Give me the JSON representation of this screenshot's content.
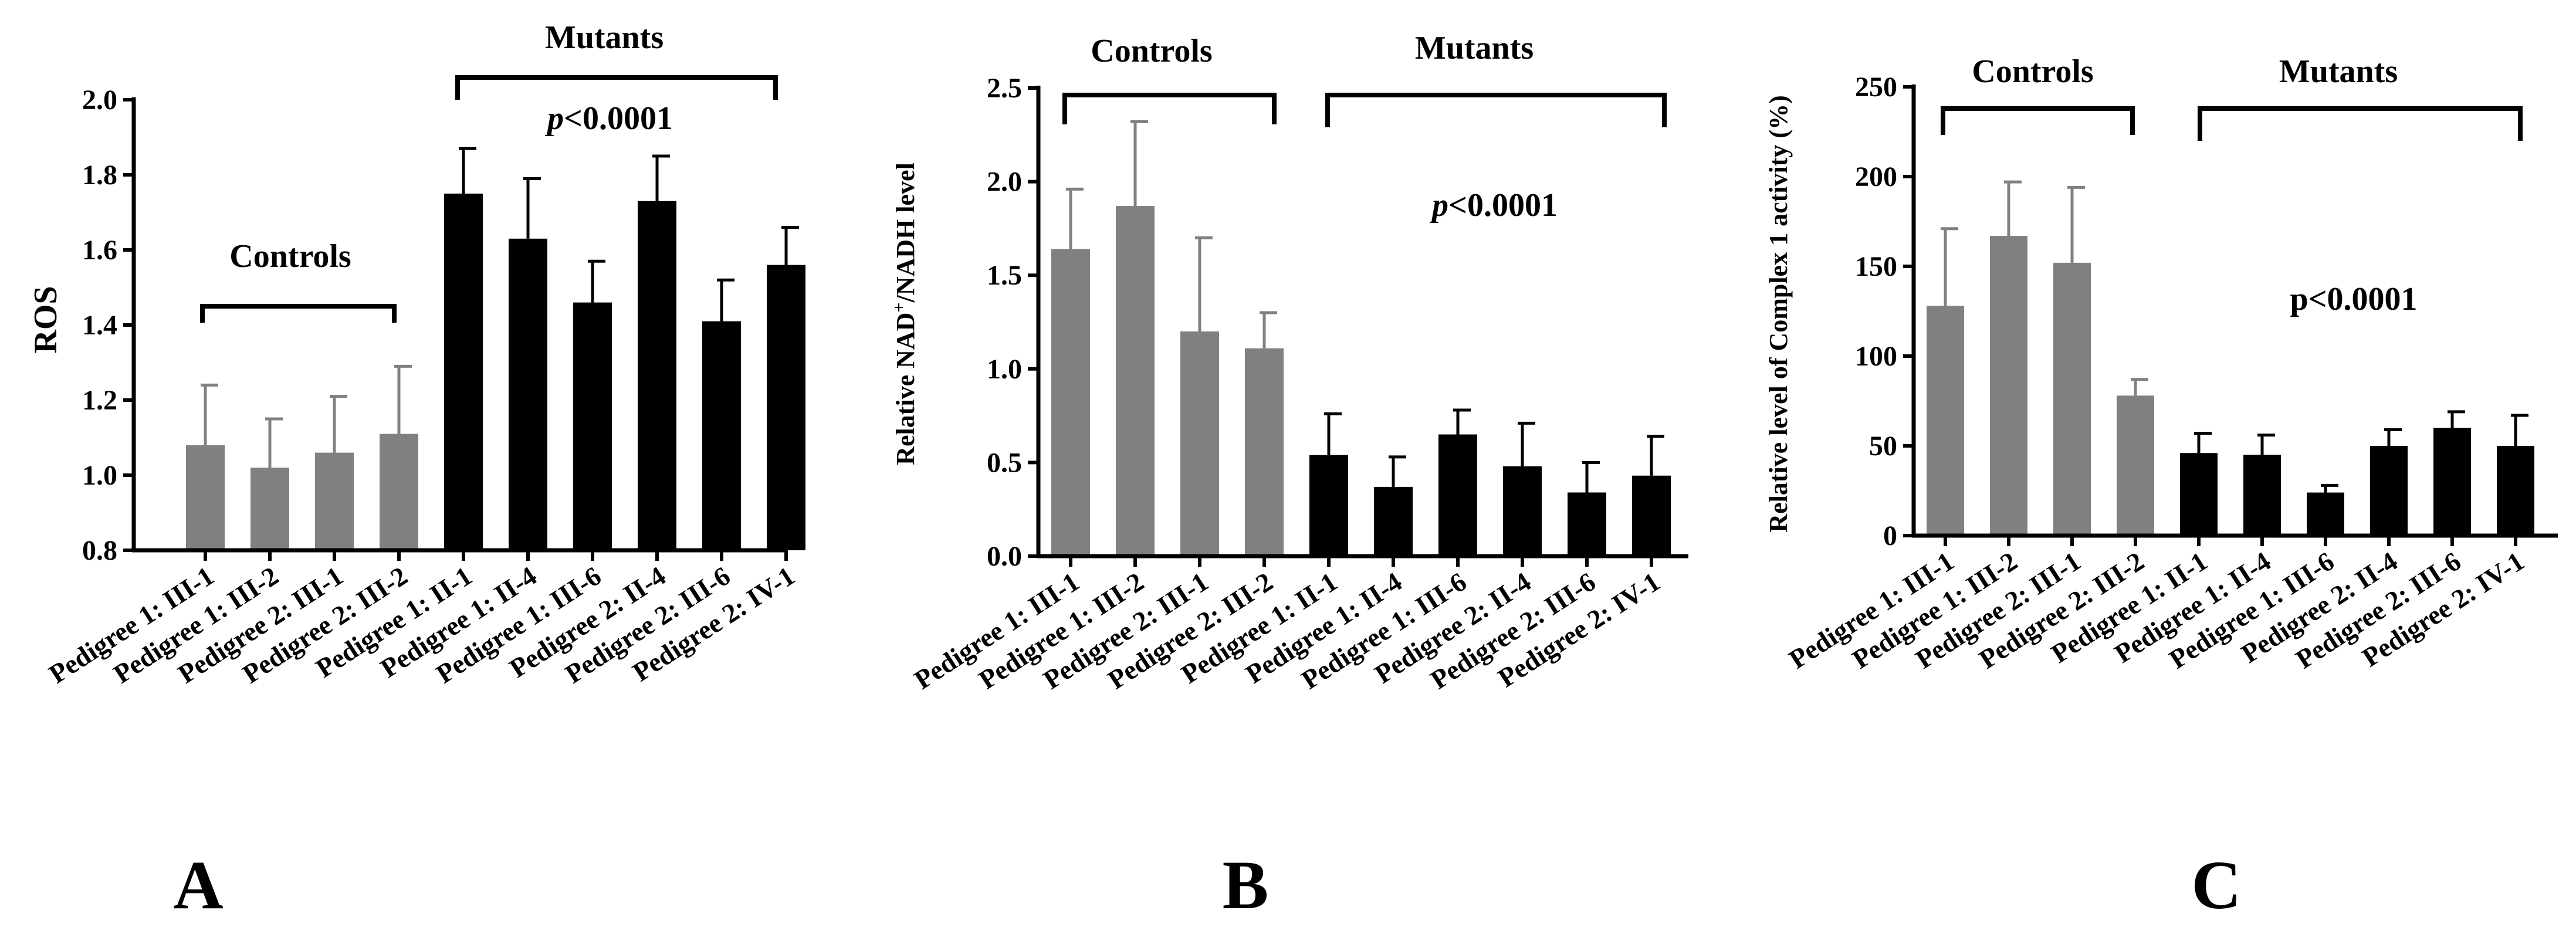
{
  "figure": {
    "colors": {
      "controls": "#808080",
      "mutants": "#000000",
      "axis": "#000000"
    }
  },
  "chart_data": [
    {
      "type": "bar",
      "panel_label": "A",
      "title": "",
      "xlabel": "",
      "ylabel": "ROS",
      "ylim": [
        0.8,
        2.0
      ],
      "yticks": [
        0.8,
        1.0,
        1.2,
        1.4,
        1.6,
        1.8,
        2.0
      ],
      "ytick_labels": [
        "0.8",
        "1.0",
        "1.2",
        "1.4",
        "1.6",
        "1.8",
        "2.0"
      ],
      "categories": [
        "Pedigree 1: III-1",
        "Pedigree 1: III-2",
        "Pedigree 2: III-1",
        "Pedigree 2: III-2",
        "Pedigree 1: II-1",
        "Pedigree 1: II-4",
        "Pedigree 1: III-6",
        "Pedigree 2: II-4",
        "Pedigree 2: III-6",
        "Pedigree 2: IV-1"
      ],
      "groups": [
        "controls",
        "controls",
        "controls",
        "controls",
        "mutants",
        "mutants",
        "mutants",
        "mutants",
        "mutants",
        "mutants"
      ],
      "values": [
        1.08,
        1.02,
        1.06,
        1.11,
        1.75,
        1.63,
        1.46,
        1.73,
        1.41,
        1.56
      ],
      "errors": [
        0.16,
        0.13,
        0.15,
        0.18,
        0.12,
        0.16,
        0.11,
        0.12,
        0.11,
        0.1
      ],
      "controls_label": "Controls",
      "mutants_label": "Mutants",
      "p_prefix": "p",
      "p_suffix": "<0.0001"
    },
    {
      "type": "bar",
      "panel_label": "B",
      "title": "",
      "xlabel": "",
      "ylabel_prefix": "Relative NAD",
      "ylabel_sup": "+",
      "ylabel_suffix": "/NADH level",
      "ylim": [
        0.0,
        2.5
      ],
      "yticks": [
        0.0,
        0.5,
        1.0,
        1.5,
        2.0,
        2.5
      ],
      "ytick_labels": [
        "0.0",
        "0.5",
        "1.0",
        "1.5",
        "2.0",
        "2.5"
      ],
      "categories": [
        "Pedigree 1: III-1",
        "Pedigree 1: III-2",
        "Pedigree 2: III-1",
        "Pedigree 2: III-2",
        "Pedigree 1: II-1",
        "Pedigree 1: II-4",
        "Pedigree 1: III-6",
        "Pedigree 2: II-4",
        "Pedigree 2: III-6",
        "Pedigree 2: IV-1"
      ],
      "groups": [
        "controls",
        "controls",
        "controls",
        "controls",
        "mutants",
        "mutants",
        "mutants",
        "mutants",
        "mutants",
        "mutants"
      ],
      "values": [
        1.64,
        1.87,
        1.2,
        1.11,
        0.54,
        0.37,
        0.65,
        0.48,
        0.34,
        0.43
      ],
      "errors": [
        0.32,
        0.45,
        0.5,
        0.19,
        0.22,
        0.16,
        0.13,
        0.23,
        0.16,
        0.21
      ],
      "controls_label": "Controls",
      "mutants_label": "Mutants",
      "p_prefix": "p",
      "p_suffix": "<0.0001"
    },
    {
      "type": "bar",
      "panel_label": "C",
      "title": "",
      "xlabel": "",
      "ylabel": "Relative level of Complex 1 activity (%)",
      "ylim": [
        0,
        250
      ],
      "yticks": [
        0,
        50,
        100,
        150,
        200,
        250
      ],
      "ytick_labels": [
        "0",
        "50",
        "100",
        "150",
        "200",
        "250"
      ],
      "categories": [
        "Pedigree 1: III-1",
        "Pedigree 1: III-2",
        "Pedigree 2: III-1",
        "Pedigree 2: III-2",
        "Pedigree 1: II-1",
        "Pedigree 1: II-4",
        "Pedigree 1: III-6",
        "Pedigree 2: II-4",
        "Pedigree 2: III-6",
        "Pedigree 2: IV-1"
      ],
      "groups": [
        "controls",
        "controls",
        "controls",
        "controls",
        "mutants",
        "mutants",
        "mutants",
        "mutants",
        "mutants",
        "mutants"
      ],
      "values": [
        128,
        167,
        152,
        78,
        46,
        45,
        24,
        50,
        60,
        50
      ],
      "errors": [
        43,
        30,
        42,
        9,
        11,
        11,
        4,
        9,
        9,
        17
      ],
      "controls_label": "Controls",
      "mutants_label": "Mutants",
      "p_prefix": "p",
      "p_suffix": "<0.0001"
    }
  ]
}
